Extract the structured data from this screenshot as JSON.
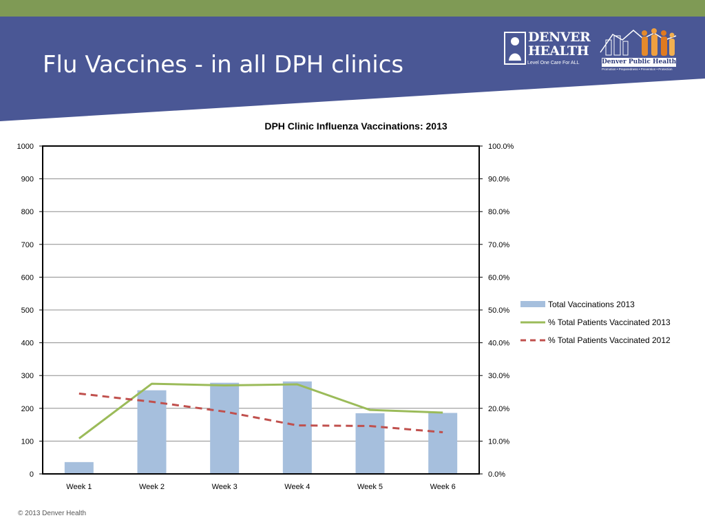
{
  "slide": {
    "title": "Flu Vaccines - in all DPH clinics",
    "footer": "© 2013 Denver Health"
  },
  "logos": {
    "denver_health_name": "DENVER HEALTH",
    "denver_health_tagline": "Level One Care For ALL",
    "dph_name": "Denver Public Health",
    "dph_tagline": "Promotion • Preparedness • Prevention • Protection"
  },
  "colors": {
    "top_stripe": "#7f9a55",
    "header": "#4a5795",
    "bars": "#a6bfdd",
    "line_2013": "#9bbb59",
    "line_2012": "#c0504d"
  },
  "chart_data": {
    "type": "bar",
    "title": "DPH Clinic Influenza Vaccinations: 2013",
    "categories": [
      "Week 1",
      "Week 2",
      "Week 3",
      "Week 4",
      "Week 5",
      "Week 6"
    ],
    "y_left": {
      "min": 0,
      "max": 1000,
      "ticks": [
        "0",
        "100",
        "200",
        "300",
        "400",
        "500",
        "600",
        "700",
        "800",
        "900",
        "1000"
      ]
    },
    "y_right": {
      "min": 0,
      "max": 100,
      "ticks": [
        "0.0%",
        "10.0%",
        "20.0%",
        "30.0%",
        "40.0%",
        "50.0%",
        "60.0%",
        "70.0%",
        "80.0%",
        "90.0%",
        "100.0%"
      ]
    },
    "grid": true,
    "legend_position": "right",
    "series": [
      {
        "name": "Total Vaccinations 2013",
        "kind": "bar",
        "axis": "left",
        "values": [
          36,
          255,
          278,
          282,
          185,
          186
        ]
      },
      {
        "name": "% Total Patients Vaccinated 2013",
        "kind": "line",
        "axis": "right",
        "values": [
          10.8,
          27.5,
          27.0,
          27.3,
          19.5,
          18.7
        ]
      },
      {
        "name": "% Total Patients Vaccinated 2012",
        "kind": "dashed-line",
        "axis": "right",
        "values": [
          24.5,
          22.0,
          19.0,
          14.8,
          14.6,
          12.7
        ]
      }
    ]
  }
}
